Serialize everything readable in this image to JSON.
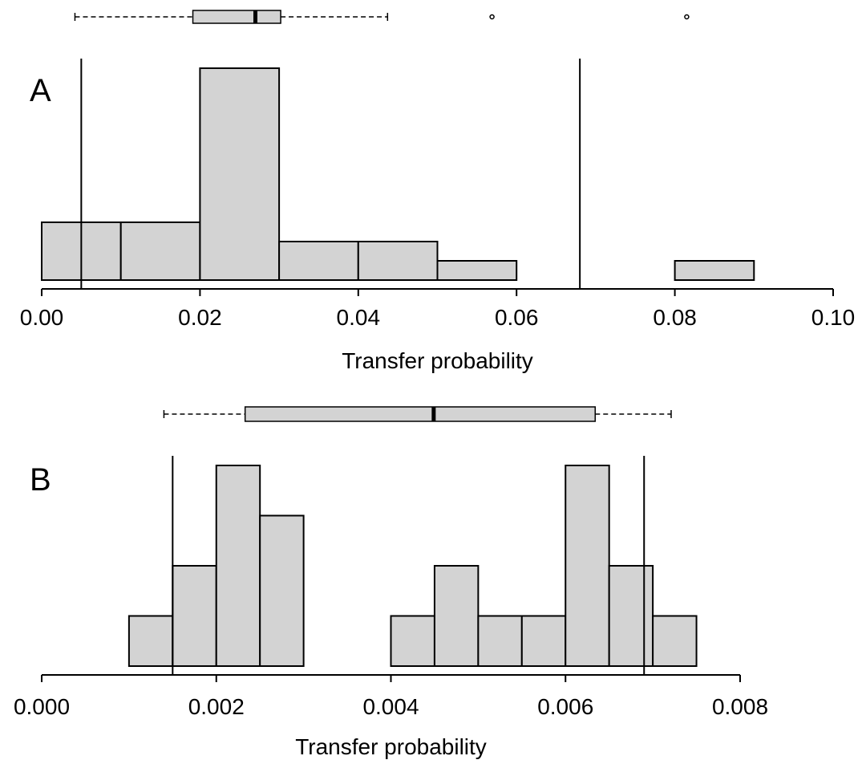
{
  "chart_data": [
    {
      "type": "histogram",
      "panel_label": "A",
      "x_label": "Transfer probability",
      "bins": [
        0,
        0.01,
        0.02,
        0.03,
        0.04,
        0.05,
        0.06,
        0.07,
        0.08,
        0.09
      ],
      "counts": [
        3,
        3,
        11,
        2,
        2,
        1,
        0,
        0,
        1
      ],
      "color": "#d3d3d3",
      "xlim": [
        0,
        0.1
      ],
      "xticks": [
        {
          "value": 0,
          "label": "0.00"
        },
        {
          "value": 0.02,
          "label": "0.02"
        },
        {
          "value": 0.04,
          "label": "0.04"
        },
        {
          "value": 0.06,
          "label": "0.06"
        },
        {
          "value": 0.08,
          "label": "0.08"
        },
        {
          "value": 0.1,
          "label": "0.10"
        }
      ],
      "vlines": [
        0.005,
        0.068
      ],
      "boxplot": {
        "whisker_low": 0.0042,
        "q1": 0.0191,
        "median": 0.027,
        "q3": 0.0302,
        "whisker_high": 0.0437,
        "outliers": [
          0.0569,
          0.0815
        ]
      }
    },
    {
      "type": "histogram",
      "panel_label": "B",
      "x_label": "Transfer probability",
      "bins": [
        0.001,
        0.0015,
        0.002,
        0.0025,
        0.003,
        0.0035,
        0.004,
        0.0045,
        0.005,
        0.0055,
        0.006,
        0.0065,
        0.007,
        0.0075
      ],
      "counts": [
        1,
        2,
        4,
        3,
        0,
        0,
        1,
        2,
        1,
        1,
        4,
        2,
        1
      ],
      "color": "#d3d3d3",
      "xlim": [
        0,
        0.008
      ],
      "xticks": [
        {
          "value": 0,
          "label": "0.000"
        },
        {
          "value": 0.002,
          "label": "0.002"
        },
        {
          "value": 0.004,
          "label": "0.004"
        },
        {
          "value": 0.006,
          "label": "0.006"
        },
        {
          "value": 0.008,
          "label": "0.008"
        }
      ],
      "vlines": [
        0.0015,
        0.0069
      ],
      "boxplot": {
        "whisker_low": 0.0014,
        "q1": 0.00233,
        "median": 0.00449,
        "q3": 0.00634,
        "whisker_high": 0.00721,
        "outliers": []
      }
    }
  ]
}
